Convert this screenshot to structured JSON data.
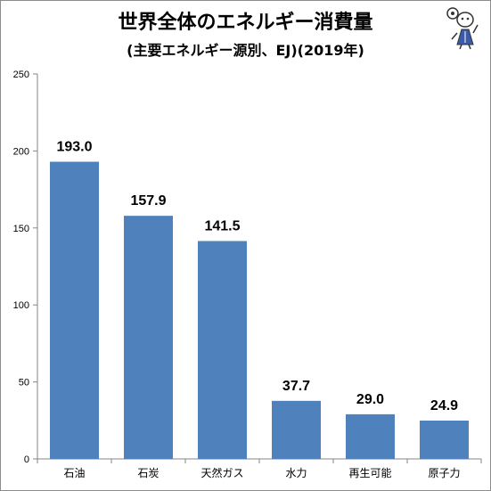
{
  "header": {
    "title": "世界全体のエネルギー消費量",
    "subtitle": "(主要エネルギー源別、EJ)(2019年)"
  },
  "colors": {
    "bar": "#4f81bd",
    "axis": "#868686",
    "frame": "#8c8c8c"
  },
  "mascot_icon": "cartoon-character-icon",
  "chart_data": {
    "type": "bar",
    "title": "世界全体のエネルギー消費量",
    "subtitle": "(主要エネルギー源別、EJ)(2019年)",
    "xlabel": "",
    "ylabel": "",
    "categories": [
      "石油",
      "石炭",
      "天然ガス",
      "水力",
      "再生可能",
      "原子力"
    ],
    "values": [
      193.0,
      157.9,
      141.5,
      37.7,
      29.0,
      24.9
    ],
    "data_labels": [
      "193.0",
      "157.9",
      "141.5",
      "37.7",
      "29.0",
      "24.9"
    ],
    "ylim": [
      0,
      250
    ],
    "yticks": [
      0,
      50,
      100,
      150,
      200,
      250
    ],
    "ytick_labels": [
      "0",
      "50",
      "100",
      "150",
      "200",
      "250"
    ],
    "grid": false,
    "legend": "none"
  }
}
